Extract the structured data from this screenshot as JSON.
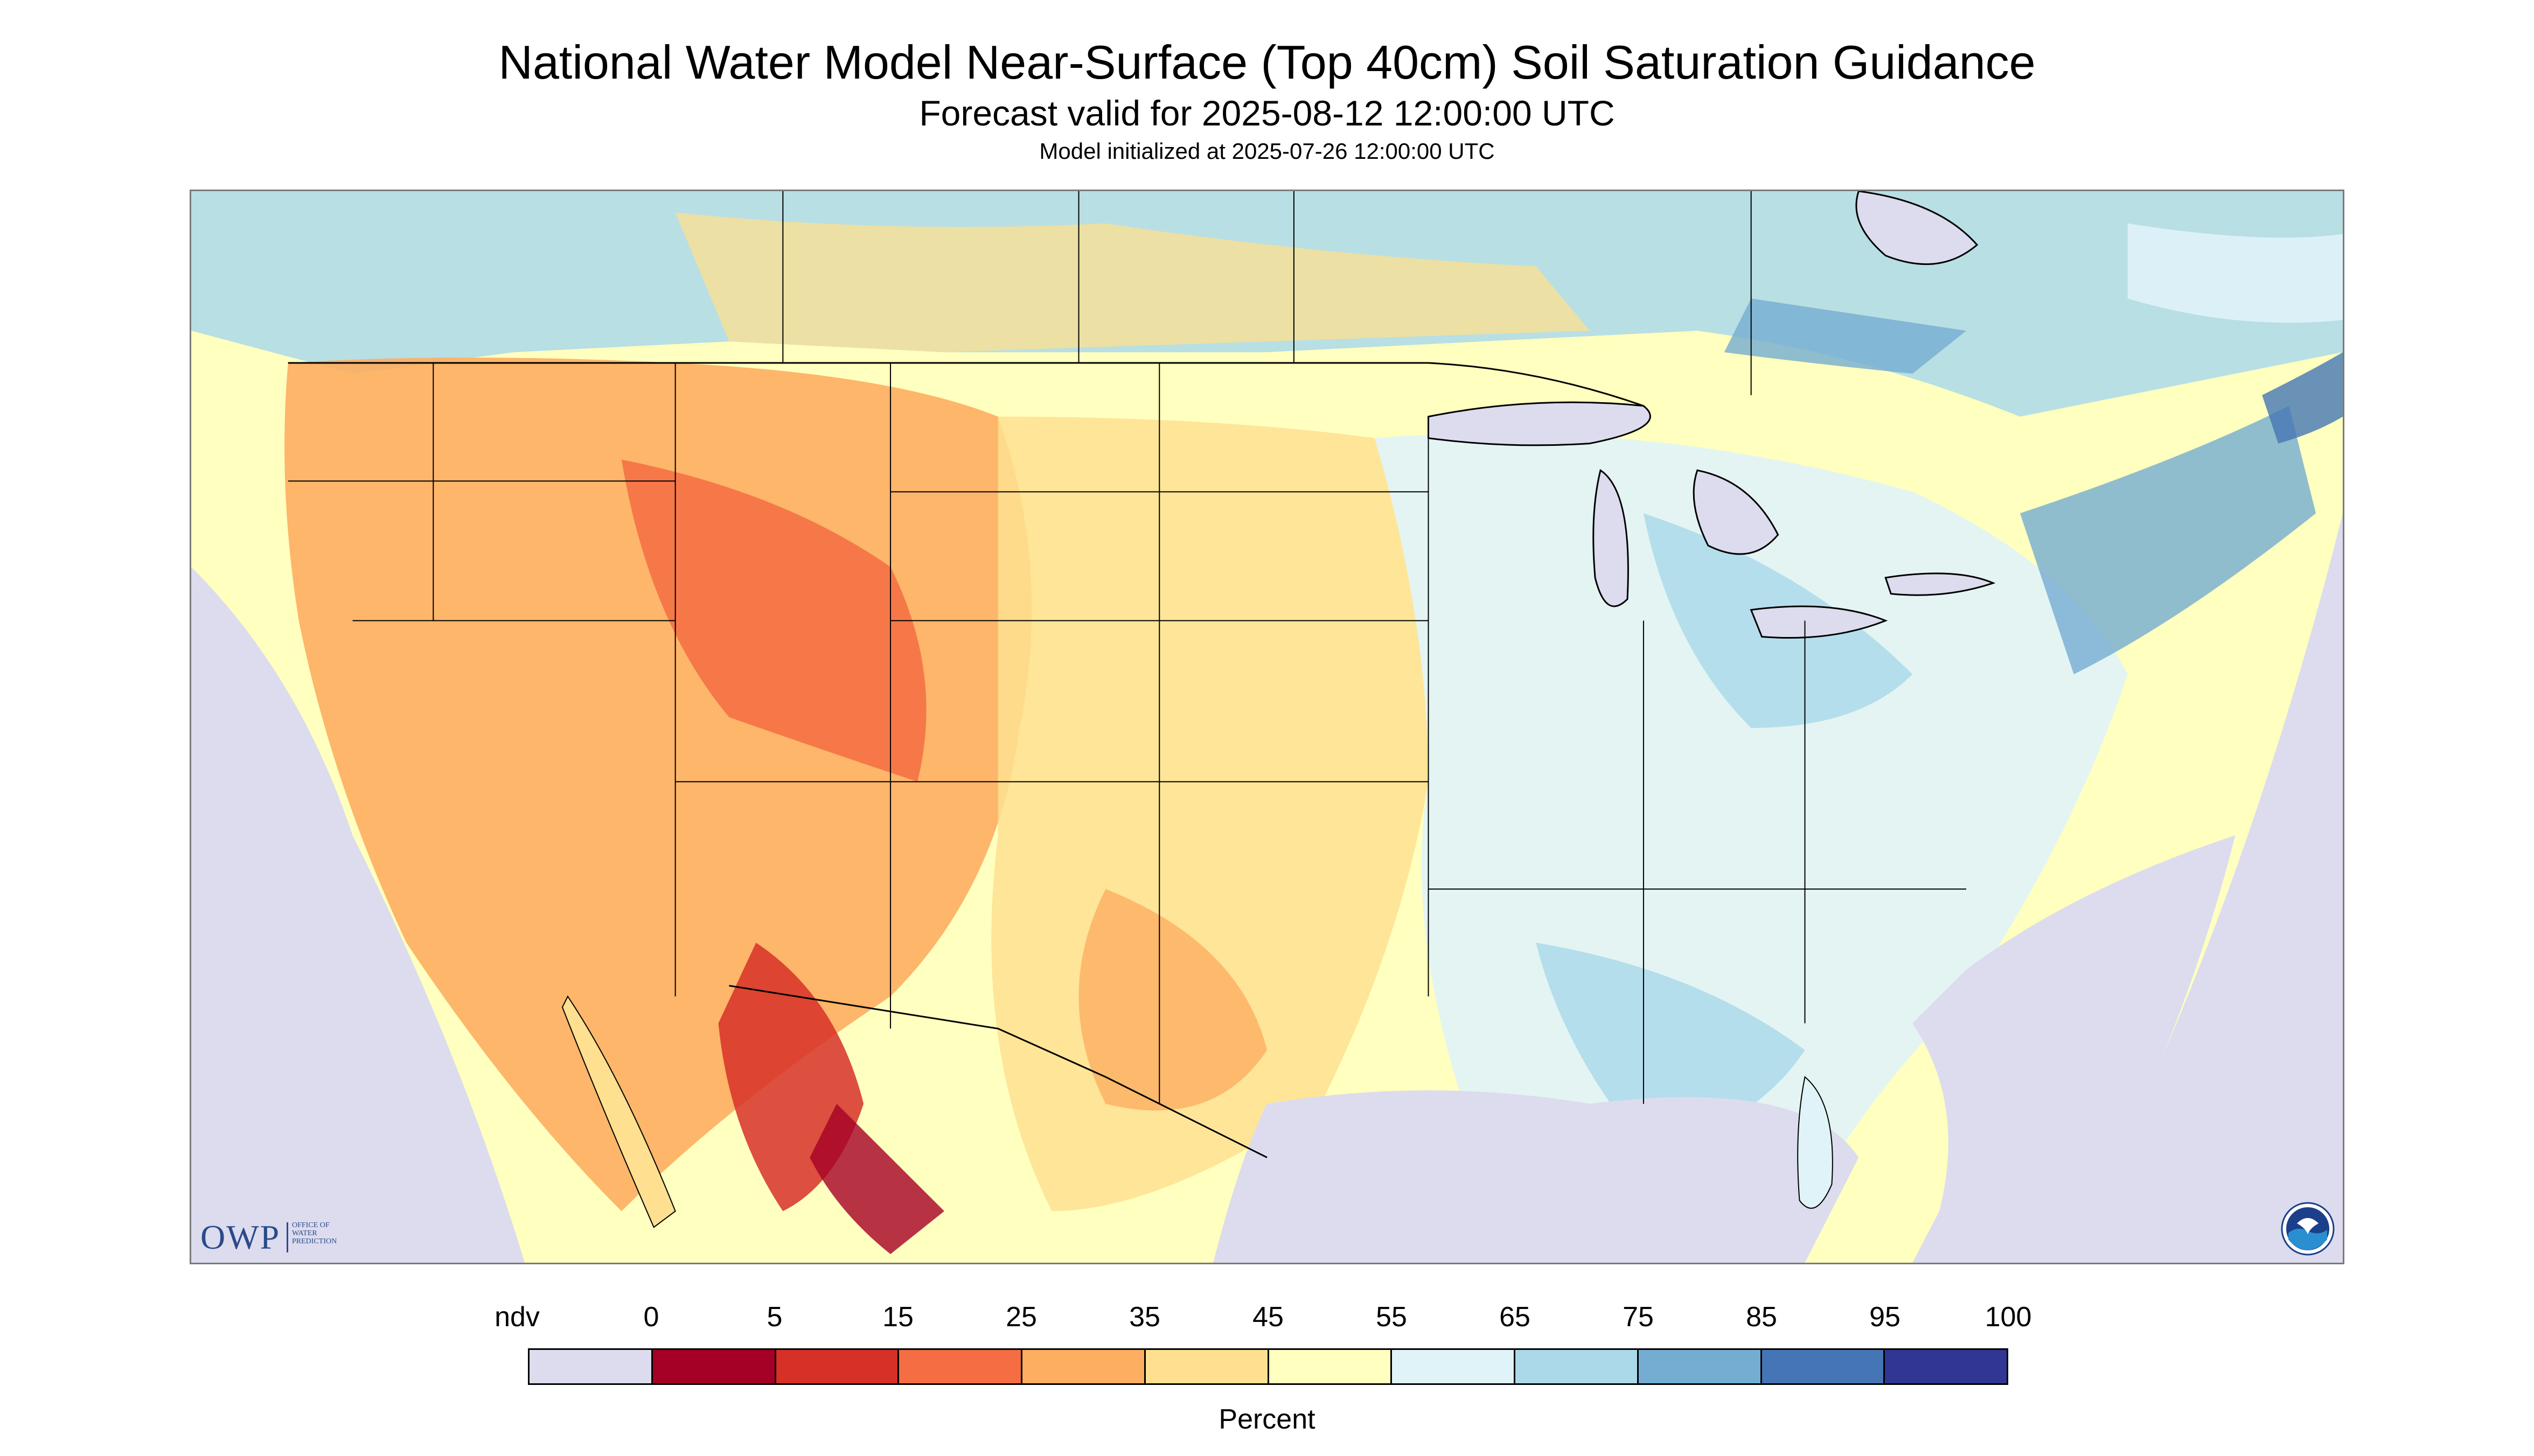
{
  "header": {
    "title": "National Water Model Near-Surface (Top 40cm) Soil Saturation Guidance",
    "subtitle": "Forecast valid for 2025-08-12 12:00:00 UTC",
    "init_line": "Model initialized at 2025-07-26 12:00:00 UTC"
  },
  "map": {
    "projection_background": "#dcdcee",
    "land_base": "#ffffbf",
    "boundary_color": "#000000",
    "ocean_lake_color": "#dcdcee"
  },
  "legend": {
    "labels": [
      "ndv",
      "0",
      "5",
      "15",
      "25",
      "35",
      "45",
      "55",
      "65",
      "75",
      "85",
      "95",
      "100"
    ],
    "colors": [
      "#dcdcee",
      "#a50026",
      "#d73027",
      "#f46d43",
      "#fdae61",
      "#fee090",
      "#ffffbf",
      "#e0f3f8",
      "#abd9e9",
      "#74add1",
      "#4575b4",
      "#313695"
    ],
    "unit": "Percent"
  },
  "logos": {
    "owp_mark": "OWP",
    "owp_sub": [
      "Office of",
      "Water",
      "Prediction"
    ],
    "noaa_icon": "noaa-logo-icon"
  }
}
